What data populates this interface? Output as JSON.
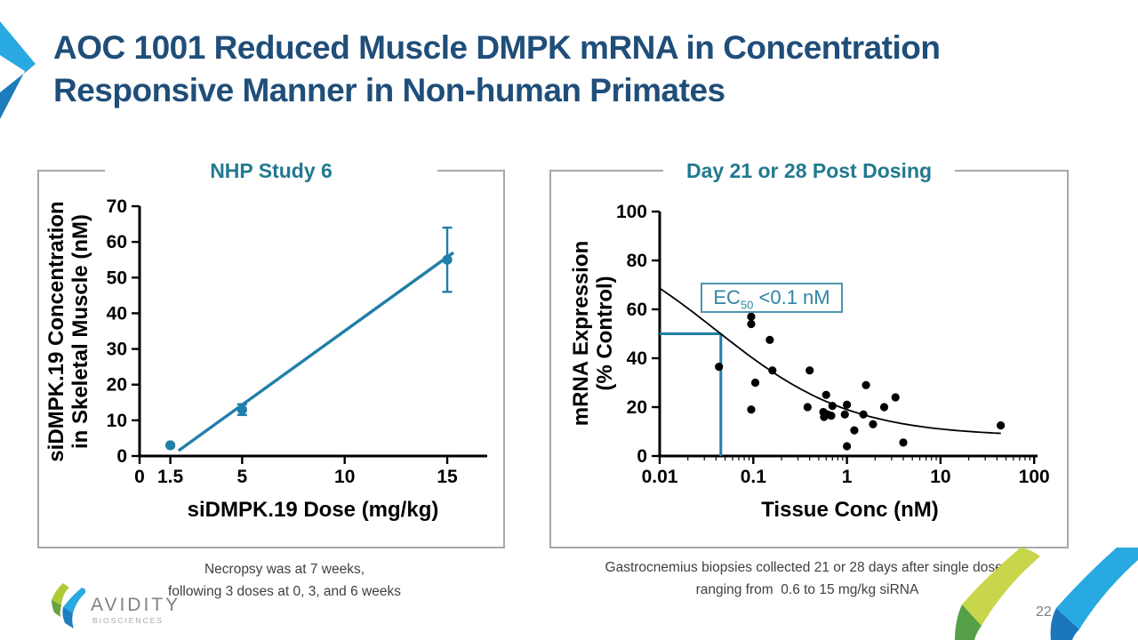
{
  "slide": {
    "title_line1": "AOC 1001 Reduced Muscle DMPK mRNA in Concentration",
    "title_line2": "Responsive Manner in Non-human Primates",
    "page_number": "22",
    "logo": {
      "name": "AVIDITY",
      "subname": "BIOSCIENCES"
    }
  },
  "colors": {
    "navy_title": "#1f4e79",
    "teal_title": "#21798f",
    "plot_blue": "#1f7fa8",
    "ec50_text": "#2e86a3",
    "panel_border": "#a8a8a8",
    "caption_text": "#404040",
    "scatter_black": "#000000"
  },
  "left_panel": {
    "title": "NHP Study 6",
    "caption_line1": "Necropsy was at 7 weeks,",
    "caption_line2": "following 3 doses at 0, 3, and 6 weeks"
  },
  "right_panel": {
    "title": "Day 21 or 28 Post Dosing",
    "ec50": {
      "base": "EC",
      "sub": "50",
      "rest": " <0.1 nM"
    },
    "caption_line1": "Gastrocnemius biopsies collected 21 or 28 days after single doses",
    "caption_line2": "ranging from  0.6 to 15 mg/kg siRNA"
  },
  "chart_data": [
    {
      "type": "scatter",
      "title": "NHP Study 6",
      "xlabel": "siDMPK.19 Dose (mg/kg)",
      "ylabel_lines": [
        "siDMPK.19 Concentration",
        "in Skeletal Muscle (nM)"
      ],
      "xlim": [
        0,
        16.9
      ],
      "ylim": [
        0,
        70
      ],
      "xticks": [
        0,
        1.5,
        5,
        10,
        15
      ],
      "xtick_labels": [
        "0",
        "1.5",
        "5",
        "10",
        "15"
      ],
      "yticks": [
        0,
        10,
        20,
        30,
        40,
        50,
        60,
        70
      ],
      "grid": false,
      "points": [
        {
          "x": 1.5,
          "y": 3,
          "err": 0
        },
        {
          "x": 5,
          "y": 13,
          "err": 1.5
        },
        {
          "x": 15,
          "y": 55,
          "err": 9
        }
      ],
      "fit_line": {
        "x1": 1.9,
        "y1": 1.5,
        "x2": 15.3,
        "y2": 57
      },
      "series_color": "#1f7fa8"
    },
    {
      "type": "scatter",
      "title": "Day 21 or 28 Post Dosing",
      "xlabel": "Tissue Conc (nM)",
      "ylabel_lines": [
        "mRNA Expression",
        "(% Control)"
      ],
      "xscale": "log",
      "xlim": [
        0.01,
        100
      ],
      "ylim": [
        0,
        100
      ],
      "xticks": [
        0.01,
        0.1,
        1,
        10,
        100
      ],
      "xtick_labels": [
        "0.01",
        "0.1",
        "1",
        "10",
        "100"
      ],
      "yticks": [
        0,
        20,
        40,
        60,
        80,
        100
      ],
      "grid": false,
      "points": [
        {
          "x": 0.043,
          "y": 36.5
        },
        {
          "x": 0.095,
          "y": 57
        },
        {
          "x": 0.095,
          "y": 54
        },
        {
          "x": 0.095,
          "y": 19
        },
        {
          "x": 0.105,
          "y": 30
        },
        {
          "x": 0.15,
          "y": 47.5
        },
        {
          "x": 0.16,
          "y": 35
        },
        {
          "x": 0.38,
          "y": 20
        },
        {
          "x": 0.4,
          "y": 35
        },
        {
          "x": 0.56,
          "y": 18
        },
        {
          "x": 0.6,
          "y": 25
        },
        {
          "x": 0.62,
          "y": 17
        },
        {
          "x": 0.57,
          "y": 16
        },
        {
          "x": 0.68,
          "y": 16.5
        },
        {
          "x": 0.7,
          "y": 20.5
        },
        {
          "x": 0.95,
          "y": 17
        },
        {
          "x": 1.0,
          "y": 21
        },
        {
          "x": 1.0,
          "y": 4
        },
        {
          "x": 1.2,
          "y": 10.5
        },
        {
          "x": 1.5,
          "y": 17
        },
        {
          "x": 1.6,
          "y": 29
        },
        {
          "x": 1.9,
          "y": 13
        },
        {
          "x": 2.5,
          "y": 20
        },
        {
          "x": 3.3,
          "y": 24
        },
        {
          "x": 4.0,
          "y": 5.5
        },
        {
          "x": 44,
          "y": 12.5
        }
      ],
      "fit_curve": {
        "model": "4PL",
        "top": 95,
        "bottom": 8,
        "ec50": 0.04,
        "hill": 0.6,
        "x_range": [
          0.01,
          44
        ]
      },
      "ec50_annotation": "EC50 <0.1 nM",
      "reference_lines": {
        "horizontal_y": 50,
        "vertical_x": 0.045,
        "color": "#1f7fa8"
      },
      "point_color": "#000000"
    }
  ]
}
